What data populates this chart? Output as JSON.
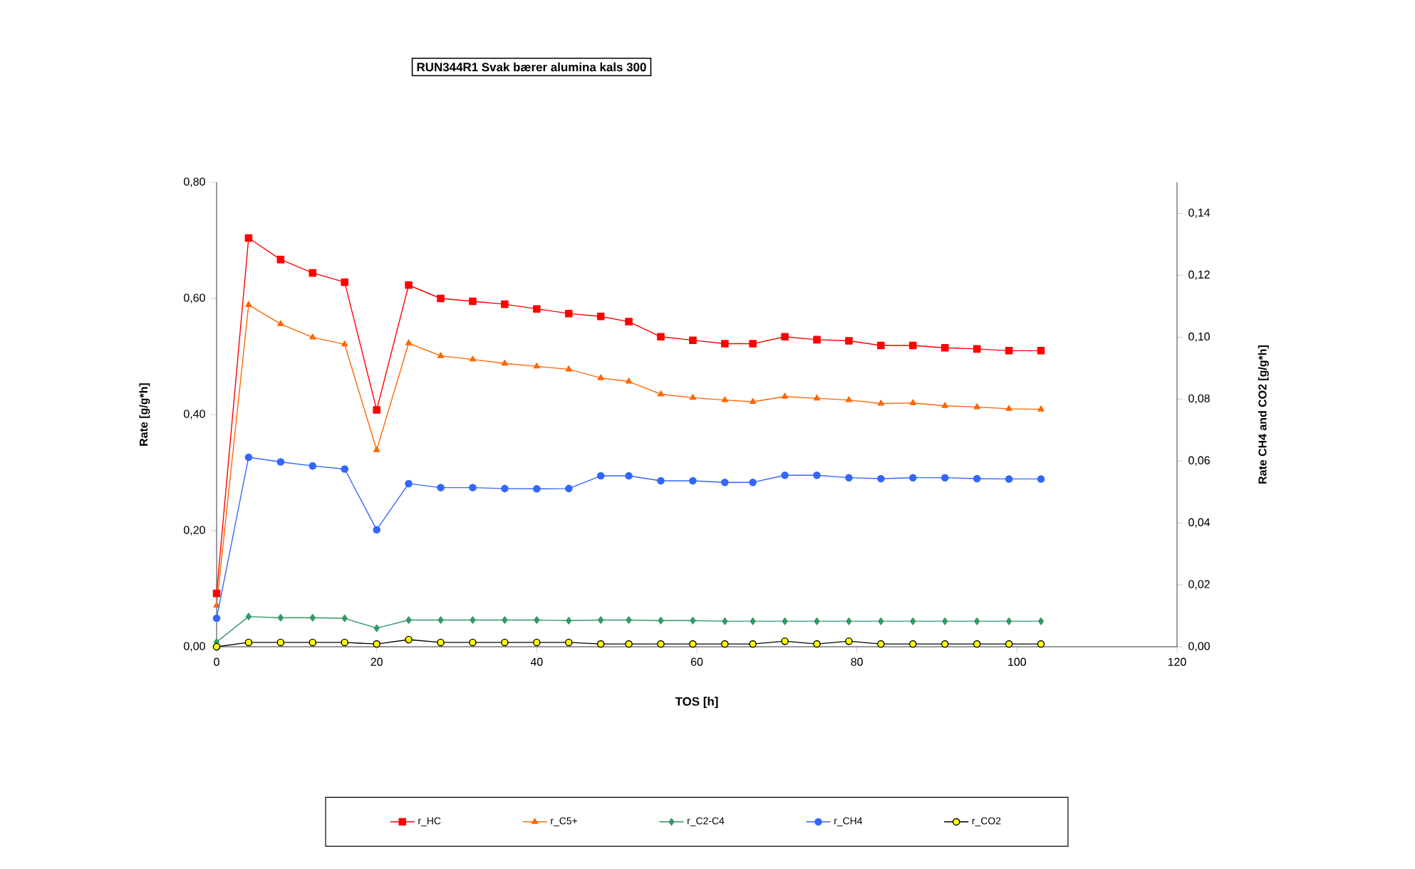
{
  "chart_data": {
    "type": "line",
    "title": "RUN344R1 Svak bærer alumina kals 300",
    "xlabel": "TOS [h]",
    "ylabel": "Rate [g/g*h]",
    "y2label": "Rate CH4 and CO2 [g/g*h]",
    "x": [
      0,
      4,
      8,
      12,
      16,
      20,
      24,
      28,
      32,
      36,
      40,
      44,
      48,
      51.5,
      55.5,
      59.5,
      63.5,
      67,
      71,
      75,
      79,
      83,
      87,
      91,
      95,
      99,
      103
    ],
    "series": [
      {
        "name": "r_HC",
        "color": "#ff0000",
        "marker": "square",
        "values": [
          0.092,
          0.704,
          0.667,
          0.644,
          0.628,
          0.408,
          0.623,
          0.6,
          0.595,
          0.59,
          0.582,
          0.574,
          0.569,
          0.56,
          0.534,
          0.528,
          0.522,
          0.522,
          0.534,
          0.529,
          0.527,
          0.519,
          0.519,
          0.515,
          0.513,
          0.51,
          0.51
        ]
      },
      {
        "name": "r_C5+",
        "color": "#ff6600",
        "marker": "triangle",
        "values": [
          0.071,
          0.589,
          0.556,
          0.533,
          0.521,
          0.339,
          0.523,
          0.501,
          0.495,
          0.488,
          0.483,
          0.478,
          0.463,
          0.457,
          0.435,
          0.429,
          0.425,
          0.422,
          0.431,
          0.428,
          0.425,
          0.419,
          0.42,
          0.415,
          0.413,
          0.41,
          0.409
        ]
      },
      {
        "name": "r_C2-C4",
        "color": "#339966",
        "marker": "diamond",
        "values": [
          0.008,
          0.052,
          0.05,
          0.05,
          0.049,
          0.032,
          0.046,
          0.046,
          0.046,
          0.046,
          0.046,
          0.045,
          0.046,
          0.046,
          0.045,
          0.045,
          0.044,
          0.044,
          0.044,
          0.044,
          0.044,
          0.044,
          0.044,
          0.044,
          0.044,
          0.044,
          0.044
        ]
      },
      {
        "name": "r_CH4",
        "color": "#3366ff",
        "marker": "circle",
        "axis": "y2",
        "values": [
          0.0092,
          0.0612,
          0.0597,
          0.0584,
          0.0574,
          0.0378,
          0.0527,
          0.0514,
          0.0514,
          0.0511,
          0.051,
          0.0511,
          0.0552,
          0.0552,
          0.0536,
          0.0536,
          0.0531,
          0.0531,
          0.0554,
          0.0554,
          0.0546,
          0.0543,
          0.0546,
          0.0546,
          0.0543,
          0.0542,
          0.0542
        ]
      },
      {
        "name": "r_CO2",
        "color": "#ffff00",
        "marker": "circle",
        "axis": "y2",
        "values": [
          0,
          0.0014,
          0.0014,
          0.0014,
          0.0014,
          0.0009,
          0.0023,
          0.0014,
          0.0014,
          0.0014,
          0.0014,
          0.0014,
          0.0009,
          0.0009,
          0.0009,
          0.0009,
          0.0009,
          0.0009,
          0.0018,
          0.0009,
          0.0018,
          0.0009,
          0.0009,
          0.0009,
          0.0009,
          0.0009,
          0.0009
        ]
      }
    ],
    "xlim": [
      0,
      120
    ],
    "xticks": [
      0,
      20,
      40,
      60,
      80,
      100,
      120
    ],
    "ylim": [
      0,
      0.8
    ],
    "yticks": [
      {
        "value": 0,
        "label": "0,00"
      },
      {
        "value": 0.2,
        "label": "0,20"
      },
      {
        "value": 0.4,
        "label": "0,40"
      },
      {
        "value": 0.6,
        "label": "0,60"
      },
      {
        "value": 0.8,
        "label": "0,80"
      }
    ],
    "y2lim": [
      0,
      0.15
    ],
    "y2ticks": [
      {
        "value": 0,
        "label": "0,00"
      },
      {
        "value": 0.02,
        "label": "0,02"
      },
      {
        "value": 0.04,
        "label": "0,04"
      },
      {
        "value": 0.06,
        "label": "0,06"
      },
      {
        "value": 0.08,
        "label": "0,08"
      },
      {
        "value": 0.1,
        "label": "0,10"
      },
      {
        "value": 0.12,
        "label": "0,12"
      },
      {
        "value": 0.14,
        "label": "0,14"
      }
    ],
    "grid": false,
    "legend": "bottom",
    "line_style": "solid"
  }
}
